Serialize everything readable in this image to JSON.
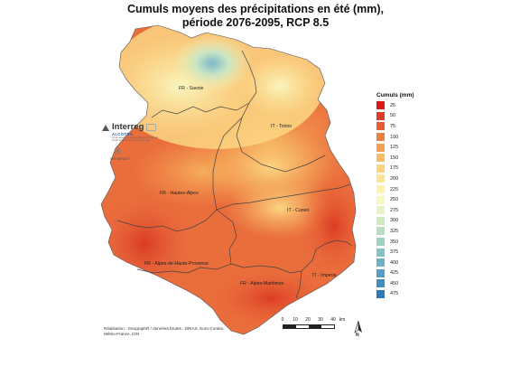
{
  "title_line1": "Cumuls moyens des précipitations en été (mm),",
  "title_line2": "période 2076-2095, RCP 8.5",
  "regions": {
    "savoie": "FR - Savoie",
    "torino": "IT - Torino",
    "hautes_alpes": "FR - Hautes-Alpes",
    "cuneo": "IT - Cuneo",
    "ahp": "FR - Alpes-de-Haute-Provence",
    "am": "FR - Alpes-Maritimes",
    "imperia": "IT - Imperia"
  },
  "legend": {
    "title": "Cumuls (mm)",
    "items": [
      {
        "label": "25",
        "color": "#d7191c"
      },
      {
        "label": "50",
        "color": "#df3b28"
      },
      {
        "label": "75",
        "color": "#e65e34"
      },
      {
        "label": "100",
        "color": "#ed7f41"
      },
      {
        "label": "125",
        "color": "#f3a052"
      },
      {
        "label": "150",
        "color": "#f8bc66"
      },
      {
        "label": "175",
        "color": "#fbd27d"
      },
      {
        "label": "200",
        "color": "#fde596"
      },
      {
        "label": "225",
        "color": "#fdf3b0"
      },
      {
        "label": "250",
        "color": "#f7f8c4"
      },
      {
        "label": "275",
        "color": "#e6f3c4"
      },
      {
        "label": "300",
        "color": "#d0eac3"
      },
      {
        "label": "325",
        "color": "#b8dfc2"
      },
      {
        "label": "350",
        "color": "#9fd2c2"
      },
      {
        "label": "375",
        "color": "#86c2c3"
      },
      {
        "label": "400",
        "color": "#6eb1c4"
      },
      {
        "label": "425",
        "color": "#569fc3"
      },
      {
        "label": "450",
        "color": "#3f8ec1"
      },
      {
        "label": "475",
        "color": "#2b7bba"
      }
    ]
  },
  "logo": {
    "name": "Interreg",
    "program": "ALCOTRA",
    "tagline1": "Fonds européen de développement régional",
    "tagline2": "Fondo europeo di sviluppo regionale",
    "project": "MITIMPACT"
  },
  "credits": {
    "line1": "Réalisation : GeographR / données brutes : DRIAS, Euro-Cordex,",
    "line2": "Météo-France, IGN"
  },
  "scale": {
    "ticks": [
      "0",
      "10",
      "20",
      "30",
      "40"
    ],
    "unit": "km"
  },
  "north_label": "N"
}
